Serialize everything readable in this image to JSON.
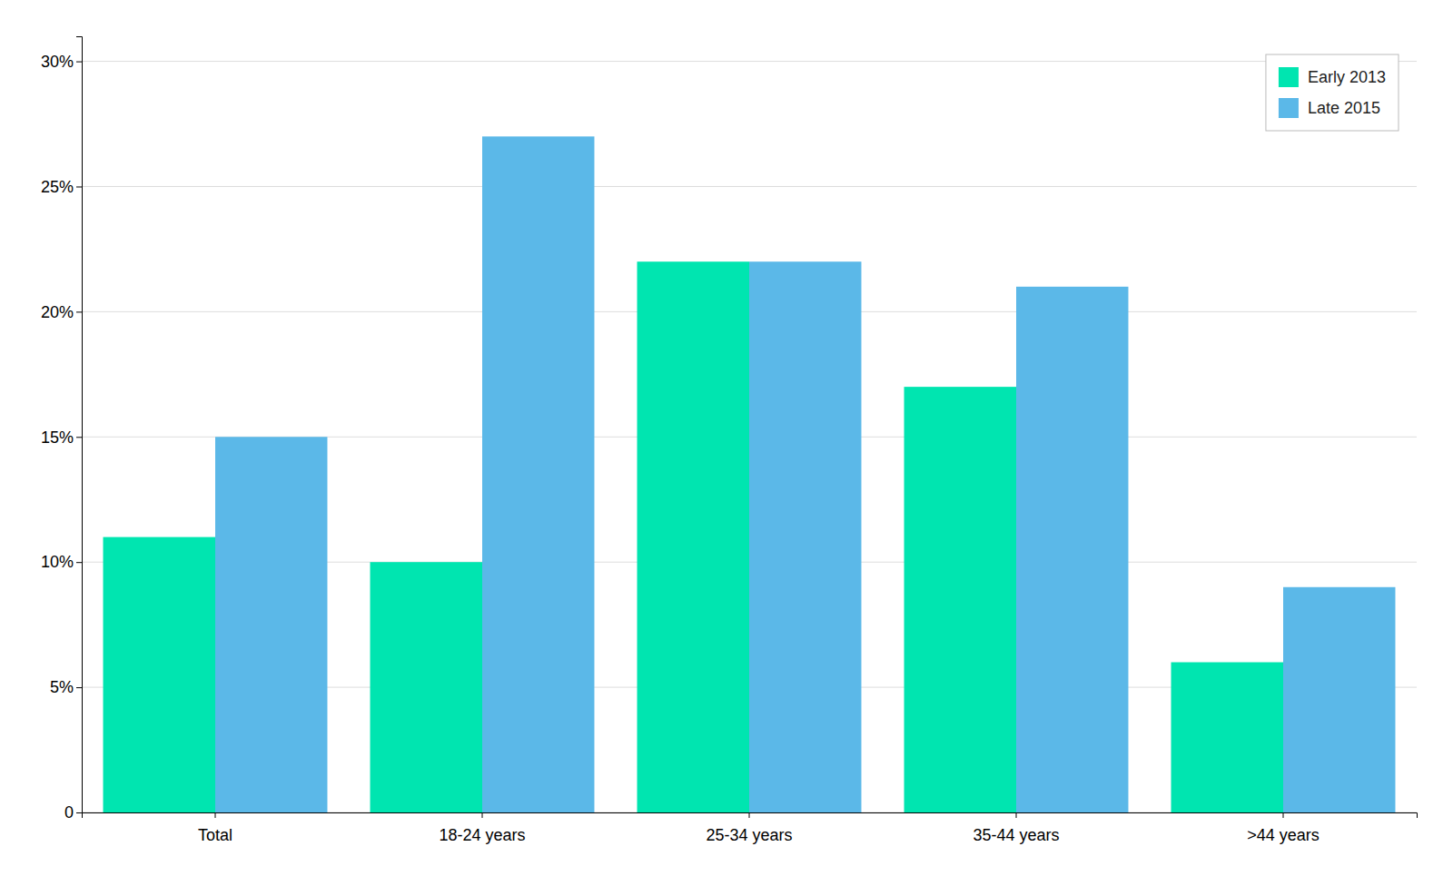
{
  "chart_data": {
    "type": "bar",
    "categories": [
      "Total",
      "18-24 years",
      "25-34 years",
      "35-44 years",
      ">44 years"
    ],
    "series": [
      {
        "name": "Early 2013",
        "color": "#00E5B0",
        "values": [
          11,
          10,
          22,
          17,
          6
        ]
      },
      {
        "name": "Late 2015",
        "color": "#5BB8E8",
        "values": [
          15,
          27,
          22,
          21,
          9
        ]
      }
    ],
    "ylim": [
      0,
      31
    ],
    "yticks": [
      0,
      {
        "value": 5,
        "label": "5%"
      },
      {
        "value": 10,
        "label": "10%"
      },
      {
        "value": 15,
        "label": "15%"
      },
      {
        "value": 20,
        "label": "20%"
      },
      {
        "value": 25,
        "label": "25%"
      },
      {
        "value": 30,
        "label": "30%"
      }
    ],
    "grid": true,
    "legend": "upper right"
  }
}
